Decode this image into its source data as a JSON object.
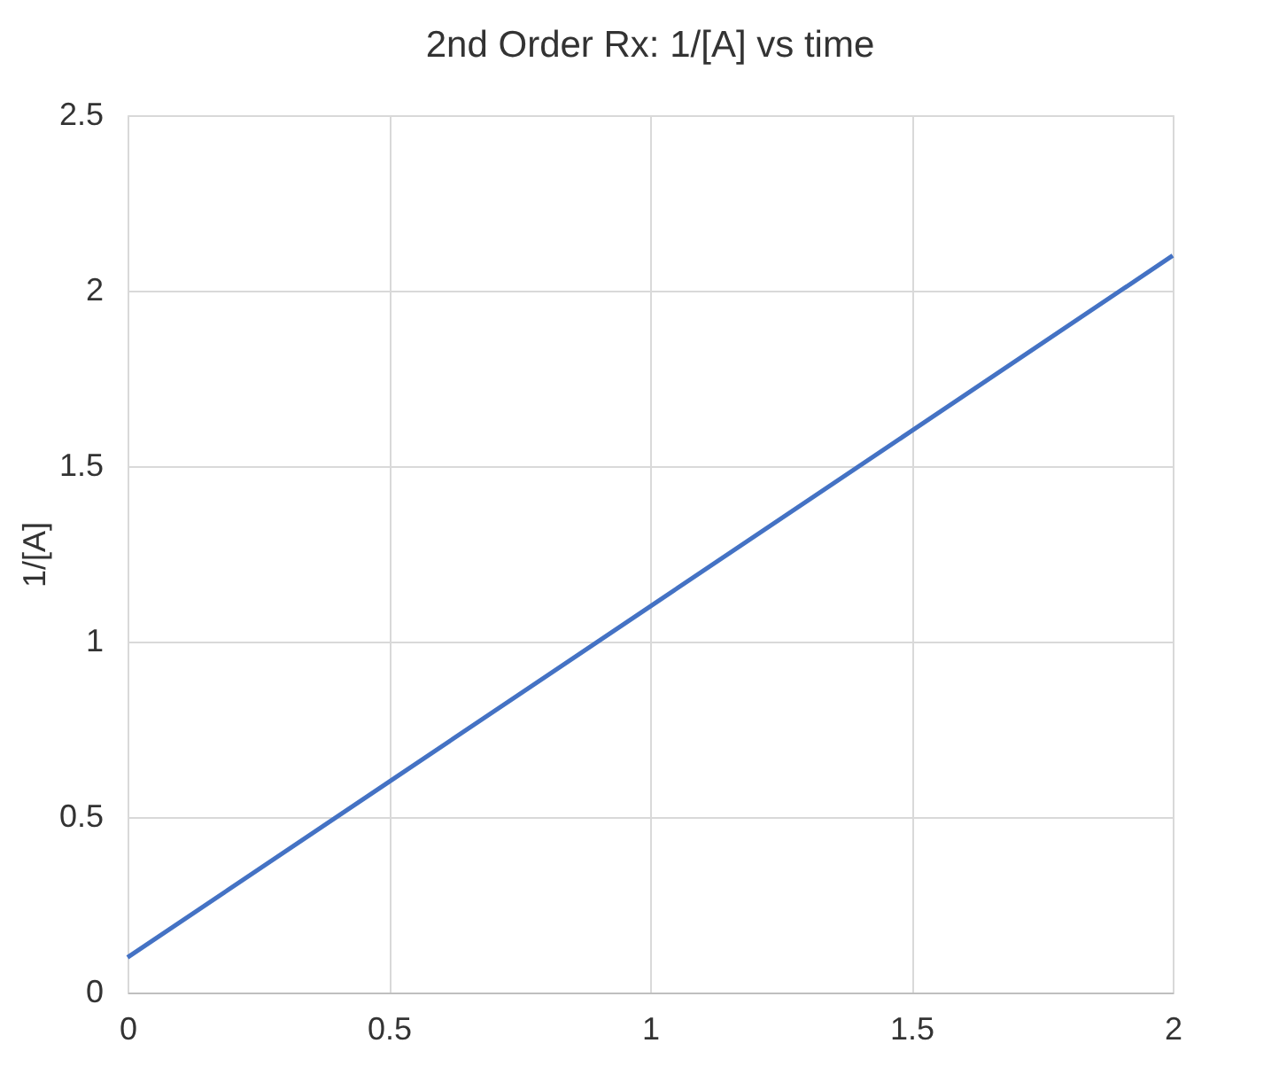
{
  "chart_data": {
    "type": "line",
    "title": "2nd Order Rx: 1/[A] vs time",
    "ylabel": "1/[A]",
    "x": [
      0,
      0.5,
      1,
      1.5,
      2
    ],
    "series": [
      {
        "color": "#4472c4",
        "values": [
          0.1,
          0.6,
          1.1,
          1.6,
          2.1
        ]
      }
    ],
    "xlim": [
      0,
      2
    ],
    "xticks": [
      0,
      0.5,
      1,
      1.5,
      2
    ],
    "ylim": [
      0,
      2.5
    ],
    "yticks": [
      0,
      0.5,
      1,
      1.5,
      2,
      2.5
    ],
    "grid": true,
    "marker": "none",
    "line_style": "solid"
  }
}
